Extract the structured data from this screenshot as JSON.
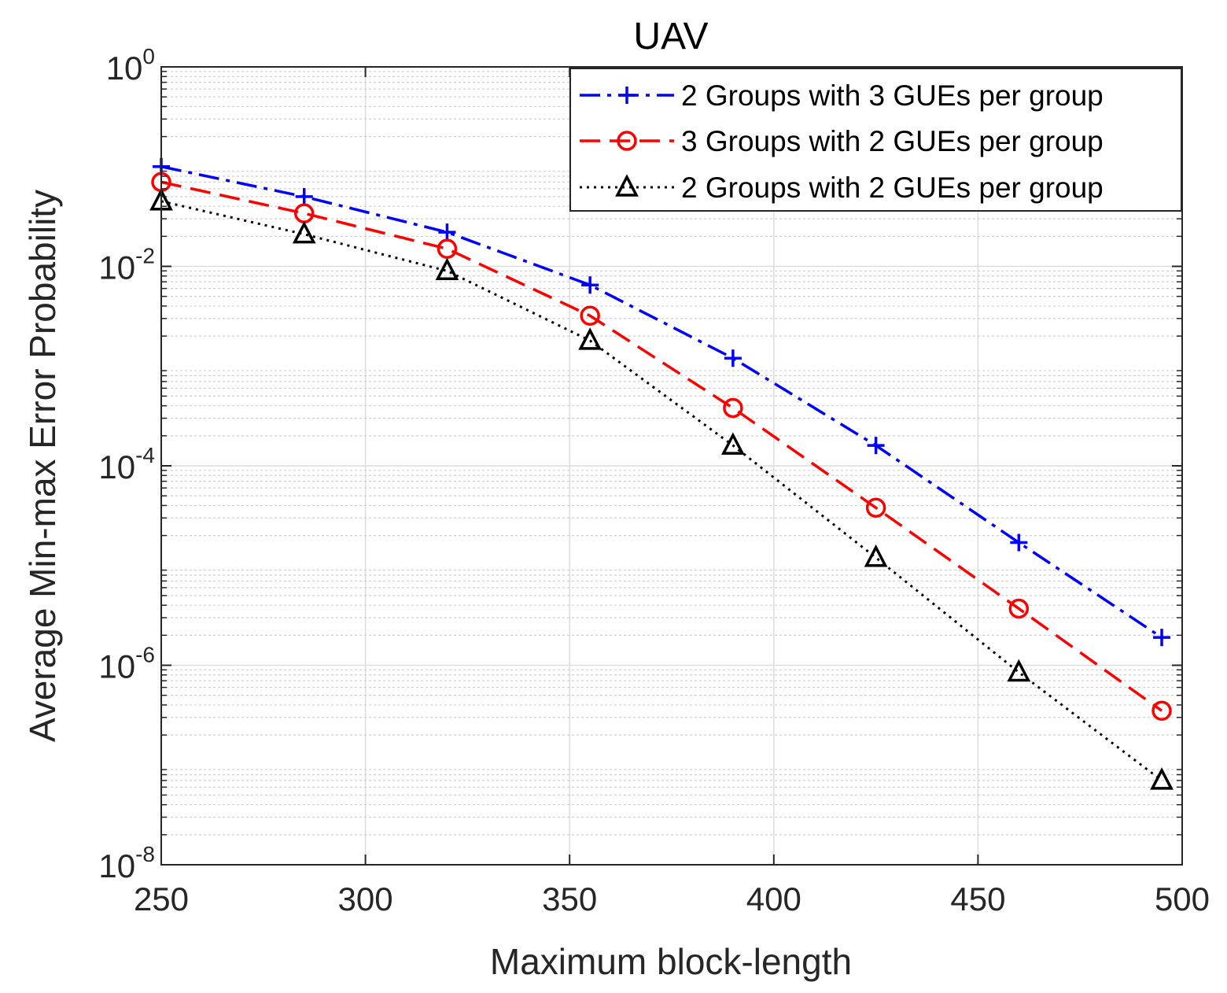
{
  "chart_data": {
    "type": "line",
    "title": "UAV",
    "xlabel": "Maximum block-length",
    "ylabel": "Average Min-max Error Probability",
    "xlim": [
      250,
      500
    ],
    "ylim": [
      1e-08,
      1
    ],
    "yscale": "log",
    "grid": true,
    "legend_position": "top-right",
    "x_ticks": [
      {
        "value": 250,
        "label": "250"
      },
      {
        "value": 300,
        "label": "300"
      },
      {
        "value": 350,
        "label": "350"
      },
      {
        "value": 400,
        "label": "400"
      },
      {
        "value": 450,
        "label": "450"
      },
      {
        "value": 500,
        "label": "500"
      }
    ],
    "y_ticks": [
      {
        "value": 1,
        "base": "10",
        "exp": "0"
      },
      {
        "value": 0.01,
        "base": "10",
        "exp": "-2"
      },
      {
        "value": 0.0001,
        "base": "10",
        "exp": "-4"
      },
      {
        "value": 1e-06,
        "base": "10",
        "exp": "-6"
      },
      {
        "value": 1e-08,
        "base": "10",
        "exp": "-8"
      }
    ],
    "x": [
      250,
      285,
      320,
      355,
      390,
      425,
      460,
      495
    ],
    "series": [
      {
        "name": "2 Groups with 3 GUEs per group",
        "color": "#0000ff",
        "dash": "dashdot",
        "marker": "plus",
        "values": [
          0.1,
          0.05,
          0.022,
          0.0065,
          0.0012,
          0.00016,
          1.7e-05,
          1.9e-06
        ]
      },
      {
        "name": "3 Groups with 2 GUEs per group",
        "color": "#ff0000",
        "dash": "dashed",
        "marker": "circle",
        "values": [
          0.07,
          0.034,
          0.015,
          0.0032,
          0.00038,
          3.8e-05,
          3.7e-06,
          3.5e-07
        ]
      },
      {
        "name": "2 Groups with 2 GUEs per group",
        "color": "#000000",
        "dash": "dotted",
        "marker": "triangle",
        "values": [
          0.045,
          0.021,
          0.009,
          0.0018,
          0.00016,
          1.2e-05,
          8.5e-07,
          7e-08
        ]
      }
    ]
  }
}
